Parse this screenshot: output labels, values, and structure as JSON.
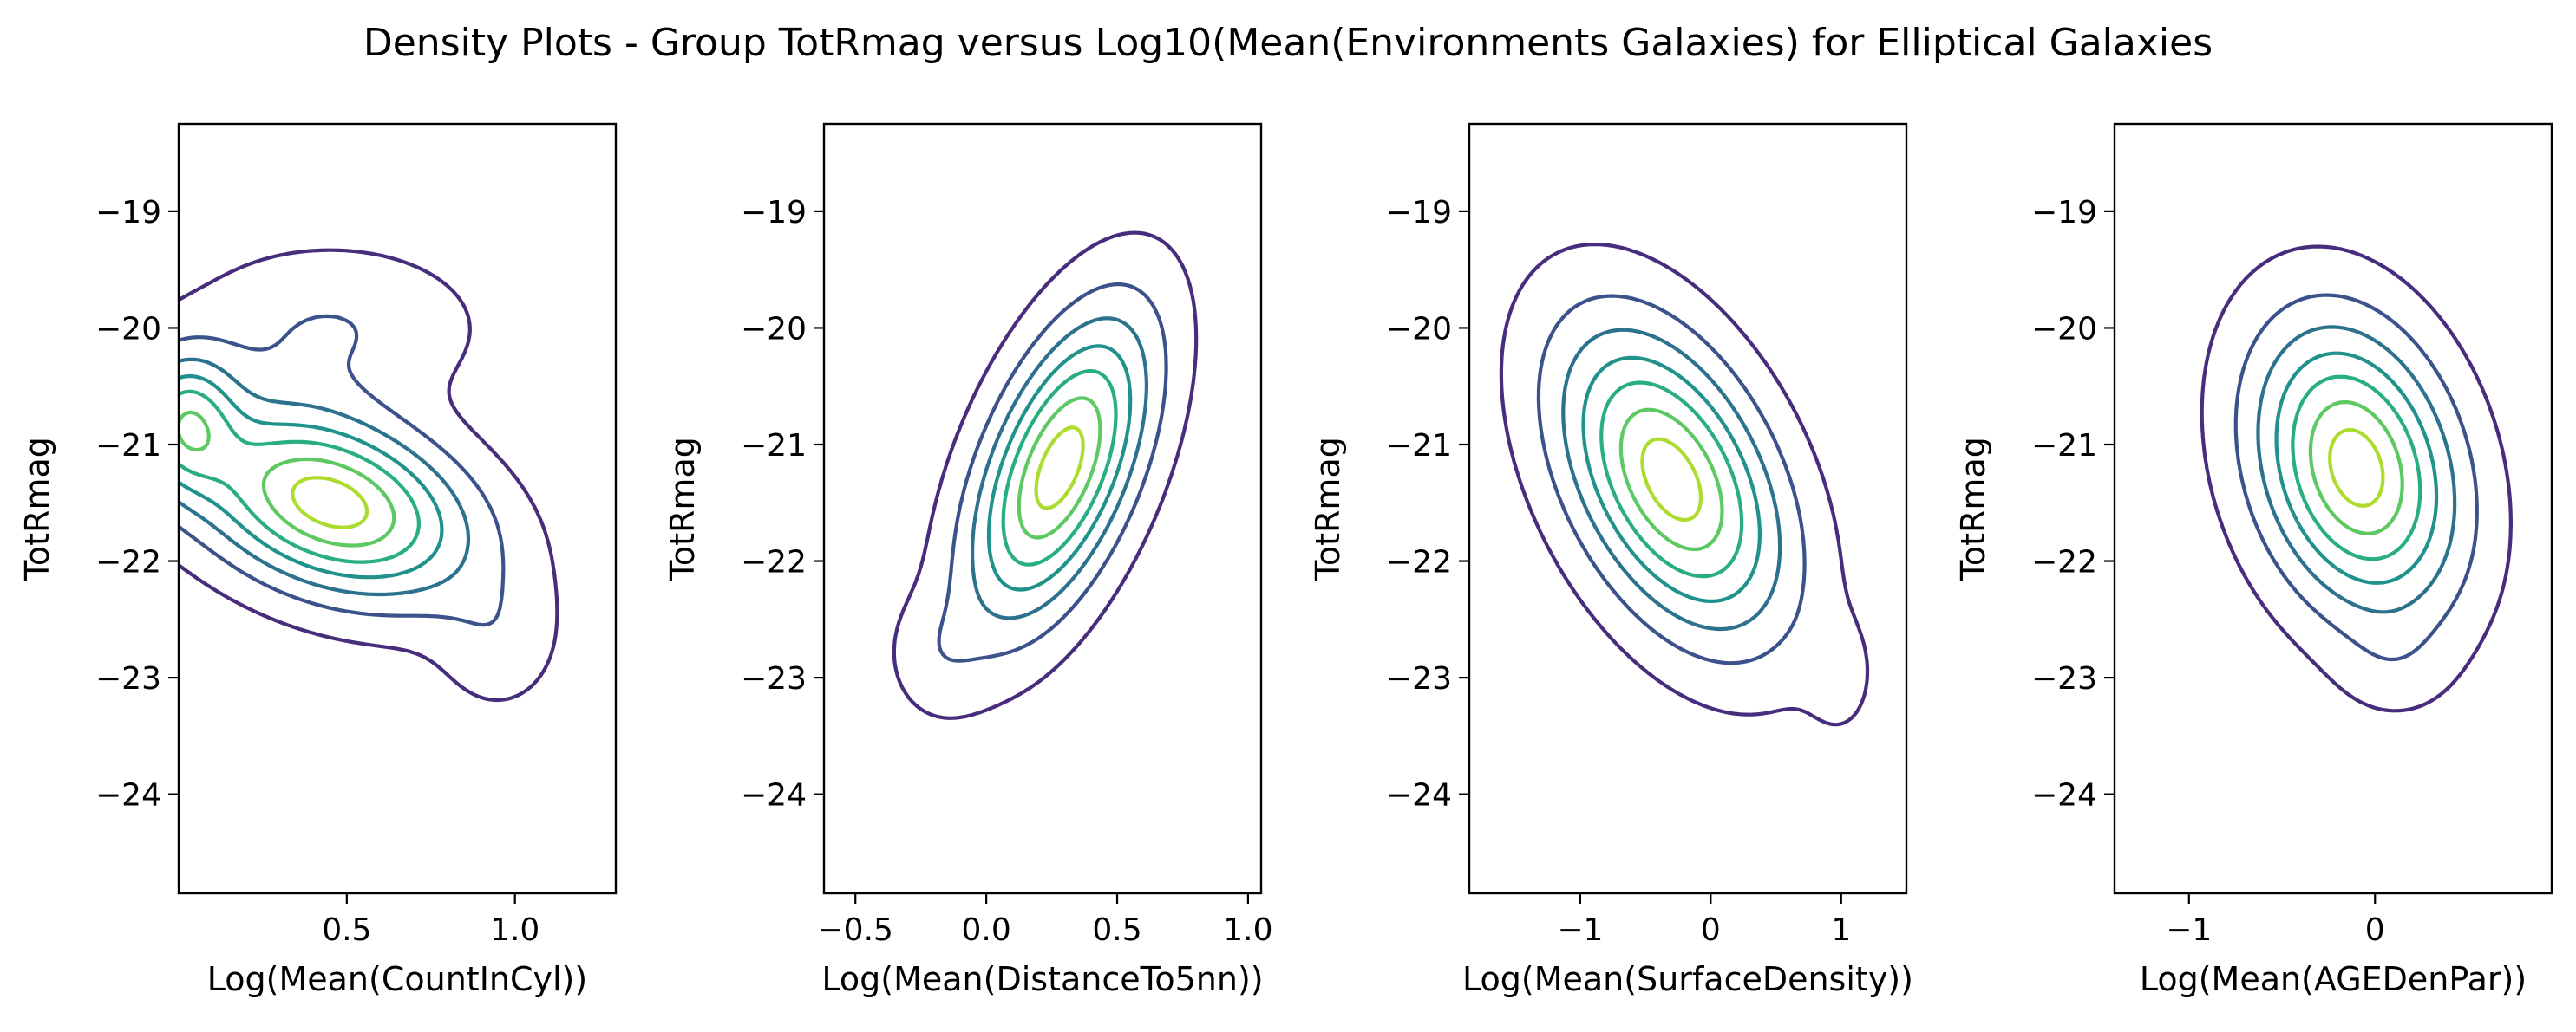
{
  "title": "Density Plots - Group TotRmag versus Log10(Mean(Environments Galaxies)  for Elliptical Galaxies",
  "colors": {
    "levels": [
      "#472d7b",
      "#3b528b",
      "#2c728e",
      "#21918c",
      "#28ae80",
      "#5ec962",
      "#addc30"
    ]
  },
  "chart_data": [
    {
      "type": "density-contour",
      "xlabel": "Log(Mean(CountInCyl))",
      "ylabel": "TotRmag",
      "xlim": [
        0.0,
        1.3
      ],
      "ylim": [
        -24.85,
        -18.25
      ],
      "xticks": [
        {
          "value": 0.5,
          "label": "0.5"
        },
        {
          "value": 1.0,
          "label": "1.0"
        }
      ],
      "yticks": [
        {
          "value": -19,
          "label": "−19"
        },
        {
          "value": -20,
          "label": "−20"
        },
        {
          "value": -21,
          "label": "−21"
        },
        {
          "value": -22,
          "label": "−22"
        },
        {
          "value": -23,
          "label": "−23"
        },
        {
          "value": -24,
          "label": "−24"
        }
      ],
      "modes": [
        {
          "cx": 0.45,
          "cy": -21.5,
          "sx": 0.27,
          "sy": 0.52,
          "rho": -0.35,
          "w": 1.0
        },
        {
          "cx": 0.02,
          "cy": -20.8,
          "sx": 0.1,
          "sy": 0.38,
          "rho": 0.0,
          "w": 0.6
        },
        {
          "cx": 0.45,
          "cy": -20.0,
          "sx": 0.28,
          "sy": 0.45,
          "rho": 0.0,
          "w": 0.18
        },
        {
          "cx": 0.95,
          "cy": -22.7,
          "sx": 0.12,
          "sy": 0.4,
          "rho": 0.0,
          "w": 0.12
        }
      ],
      "level_fractions": [
        0.06,
        0.18,
        0.32,
        0.47,
        0.62,
        0.78,
        0.92
      ]
    },
    {
      "type": "density-contour",
      "xlabel": "Log(Mean(DistanceTo5nn))",
      "ylabel": "TotRmag",
      "xlim": [
        -0.62,
        1.05
      ],
      "ylim": [
        -24.85,
        -18.25
      ],
      "xticks": [
        {
          "value": -0.5,
          "label": "−0.5"
        },
        {
          "value": 0.0,
          "label": "0.0"
        },
        {
          "value": 0.5,
          "label": "0.5"
        },
        {
          "value": 1.0,
          "label": "1.0"
        }
      ],
      "yticks": [
        {
          "value": -19,
          "label": "−19"
        },
        {
          "value": -20,
          "label": "−20"
        },
        {
          "value": -21,
          "label": "−21"
        },
        {
          "value": -22,
          "label": "−22"
        },
        {
          "value": -23,
          "label": "−23"
        },
        {
          "value": -24,
          "label": "−24"
        }
      ],
      "modes": [
        {
          "cx": 0.28,
          "cy": -21.2,
          "sx": 0.22,
          "sy": 0.85,
          "rho": 0.55,
          "w": 1.0
        },
        {
          "cx": -0.2,
          "cy": -22.8,
          "sx": 0.12,
          "sy": 0.35,
          "rho": 0.0,
          "w": 0.1
        }
      ],
      "level_fractions": [
        0.06,
        0.18,
        0.32,
        0.47,
        0.62,
        0.78,
        0.92
      ]
    },
    {
      "type": "density-contour",
      "xlabel": "Log(Mean(SurfaceDensity))",
      "ylabel": "TotRmag",
      "xlim": [
        -1.85,
        1.5
      ],
      "ylim": [
        -24.85,
        -18.25
      ],
      "xticks": [
        {
          "value": -1,
          "label": "−1"
        },
        {
          "value": 0,
          "label": "0"
        },
        {
          "value": 1,
          "label": "1"
        }
      ],
      "yticks": [
        {
          "value": -19,
          "label": "−19"
        },
        {
          "value": -20,
          "label": "−20"
        },
        {
          "value": -21,
          "label": "−21"
        },
        {
          "value": -22,
          "label": "−22"
        },
        {
          "value": -23,
          "label": "−23"
        },
        {
          "value": -24,
          "label": "−24"
        }
      ],
      "modes": [
        {
          "cx": -0.3,
          "cy": -21.3,
          "sx": 0.55,
          "sy": 0.85,
          "rho": -0.45,
          "w": 1.0
        },
        {
          "cx": 1.0,
          "cy": -23.0,
          "sx": 0.18,
          "sy": 0.35,
          "rho": 0.0,
          "w": 0.08
        }
      ],
      "level_fractions": [
        0.06,
        0.18,
        0.32,
        0.47,
        0.62,
        0.78,
        0.92
      ]
    },
    {
      "type": "density-contour",
      "xlabel": "Log(Mean(AGEDenPar))",
      "ylabel": "TotRmag",
      "xlim": [
        -1.4,
        0.95
      ],
      "ylim": [
        -24.85,
        -18.25
      ],
      "xticks": [
        {
          "value": -1,
          "label": "−1"
        },
        {
          "value": 0,
          "label": "0"
        }
      ],
      "yticks": [
        {
          "value": -19,
          "label": "−19"
        },
        {
          "value": -20,
          "label": "−20"
        },
        {
          "value": -21,
          "label": "−21"
        },
        {
          "value": -22,
          "label": "−22"
        },
        {
          "value": -23,
          "label": "−23"
        },
        {
          "value": -24,
          "label": "−24"
        }
      ],
      "modes": [
        {
          "cx": -0.1,
          "cy": -21.2,
          "sx": 0.35,
          "sy": 0.8,
          "rho": -0.25,
          "w": 1.0
        },
        {
          "cx": 0.1,
          "cy": -22.9,
          "sx": 0.2,
          "sy": 0.3,
          "rho": 0.0,
          "w": 0.06
        }
      ],
      "level_fractions": [
        0.06,
        0.18,
        0.32,
        0.47,
        0.62,
        0.78,
        0.92
      ]
    }
  ]
}
